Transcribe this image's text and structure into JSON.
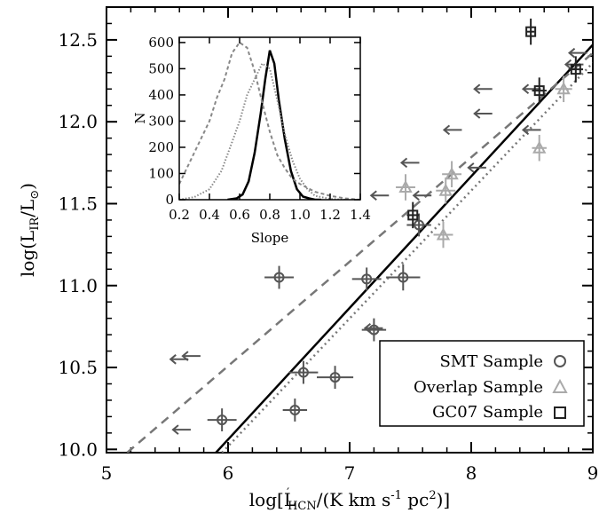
{
  "chart_data": [
    {
      "type": "scatter",
      "xlabel_parts": {
        "pre": "log[L",
        "sub": "HCN",
        "prime": "′",
        "post": "/(K km s",
        "sup1": "-1",
        "mid": " pc",
        "sup2": "2",
        "end": ")]"
      },
      "ylabel_parts": {
        "pre": "log(L",
        "sub1": "IR",
        "mid": "/L",
        "sub2": "⊙",
        "end": ")"
      },
      "xlim": [
        5,
        9
      ],
      "ylim": [
        9.98,
        12.7
      ],
      "xticks": [
        5,
        6,
        7,
        8,
        9
      ],
      "yticks": [
        10.0,
        10.5,
        11.0,
        11.5,
        12.0,
        12.5
      ],
      "xtick_labels": [
        "5",
        "6",
        "7",
        "8",
        "9"
      ],
      "ytick_labels": [
        "10.0",
        "10.5",
        "11.0",
        "11.5",
        "12.0",
        "12.5"
      ],
      "legend": {
        "position": "bottom-right",
        "entries": [
          {
            "label": "SMT Sample",
            "marker": "circle",
            "color": "#555555"
          },
          {
            "label": "Overlap Sample",
            "marker": "triangle",
            "color": "#aaaaaa"
          },
          {
            "label": "GC07 Sample",
            "marker": "square",
            "color": "#222222"
          }
        ]
      },
      "smt_points": [
        {
          "x": 5.95,
          "y": 10.18,
          "xerr": 0.12,
          "yerr": 0.07
        },
        {
          "x": 6.42,
          "y": 11.05,
          "xerr": 0.12,
          "yerr": 0.07
        },
        {
          "x": 6.55,
          "y": 10.24,
          "xerr": 0.1,
          "yerr": 0.07
        },
        {
          "x": 6.62,
          "y": 10.47,
          "xerr": 0.12,
          "yerr": 0.07
        },
        {
          "x": 6.88,
          "y": 10.44,
          "xerr": 0.15,
          "yerr": 0.07
        },
        {
          "x": 7.14,
          "y": 11.04,
          "xerr": 0.12,
          "yerr": 0.07
        },
        {
          "x": 7.2,
          "y": 10.73,
          "xerr": 0.1,
          "yerr": 0.07
        },
        {
          "x": 7.44,
          "y": 11.05,
          "xerr": 0.14,
          "yerr": 0.08
        },
        {
          "x": 7.57,
          "y": 11.37,
          "xerr": 0.1,
          "yerr": 0.07
        }
      ],
      "overlap_points": [
        {
          "x": 7.46,
          "y": 11.6,
          "xerr": 0.08,
          "yerr": 0.08
        },
        {
          "x": 7.77,
          "y": 11.31,
          "xerr": 0.08,
          "yerr": 0.08
        },
        {
          "x": 7.79,
          "y": 11.58,
          "xerr": 0.08,
          "yerr": 0.08
        },
        {
          "x": 7.84,
          "y": 11.68,
          "xerr": 0.08,
          "yerr": 0.08
        },
        {
          "x": 8.56,
          "y": 11.84,
          "xerr": 0.06,
          "yerr": 0.08
        },
        {
          "x": 8.76,
          "y": 12.2,
          "xerr": 0.07,
          "yerr": 0.08
        }
      ],
      "gc07_points": [
        {
          "x": 7.52,
          "y": 11.43,
          "xerr": 0.05,
          "yerr": 0.08
        },
        {
          "x": 8.49,
          "y": 12.55,
          "xerr": 0.03,
          "yerr": 0.08
        },
        {
          "x": 8.56,
          "y": 12.19,
          "xerr": 0.06,
          "yerr": 0.08
        },
        {
          "x": 8.86,
          "y": 12.32,
          "xerr": 0.06,
          "yerr": 0.08
        }
      ],
      "upper_limits": [
        {
          "x": 5.6,
          "y": 10.55
        },
        {
          "x": 5.7,
          "y": 10.57
        },
        {
          "x": 5.62,
          "y": 10.12
        },
        {
          "x": 7.2,
          "y": 10.74
        },
        {
          "x": 7.25,
          "y": 11.55
        },
        {
          "x": 7.5,
          "y": 11.75
        },
        {
          "x": 7.6,
          "y": 11.55
        },
        {
          "x": 7.85,
          "y": 11.95
        },
        {
          "x": 8.05,
          "y": 11.72
        },
        {
          "x": 8.1,
          "y": 12.05
        },
        {
          "x": 8.1,
          "y": 12.2
        },
        {
          "x": 8.5,
          "y": 12.2
        },
        {
          "x": 8.5,
          "y": 11.95
        },
        {
          "x": 8.85,
          "y": 12.35
        },
        {
          "x": 8.88,
          "y": 12.42
        }
      ],
      "fit_lines": [
        {
          "style": "solid",
          "color": "#000000",
          "x": [
            5.9,
            9.0
          ],
          "y": [
            9.98,
            12.47
          ]
        },
        {
          "style": "dashed",
          "color": "#777777",
          "x": [
            5.17,
            9.0
          ],
          "y": [
            9.98,
            12.42
          ]
        },
        {
          "style": "dotted",
          "color": "#777777",
          "x": [
            5.95,
            9.0
          ],
          "y": [
            9.98,
            12.36
          ]
        }
      ]
    },
    {
      "type": "line",
      "xlabel": "Slope",
      "ylabel": "N",
      "xlim": [
        0.2,
        1.4
      ],
      "ylim": [
        0,
        620
      ],
      "xticks": [
        0.2,
        0.4,
        0.6,
        0.8,
        1.0,
        1.2,
        1.4
      ],
      "yticks": [
        0,
        100,
        200,
        300,
        400,
        500,
        600
      ],
      "xtick_labels": [
        "0.2",
        "0.4",
        "0.6",
        "0.8",
        "1.0",
        "1.2",
        "1.4"
      ],
      "ytick_labels": [
        "0",
        "100",
        "200",
        "300",
        "400",
        "500",
        "600"
      ],
      "series": [
        {
          "style": "solid",
          "color": "#000000",
          "x": [
            0.52,
            0.58,
            0.62,
            0.66,
            0.7,
            0.74,
            0.77,
            0.8,
            0.83,
            0.86,
            0.9,
            0.94,
            0.98,
            1.02,
            1.06,
            1.1,
            1.14
          ],
          "y": [
            0,
            5,
            20,
            70,
            180,
            330,
            460,
            570,
            520,
            380,
            230,
            110,
            40,
            12,
            5,
            0,
            0
          ]
        },
        {
          "style": "dotted",
          "color": "#888888",
          "x": [
            0.2,
            0.3,
            0.4,
            0.48,
            0.55,
            0.6,
            0.65,
            0.7,
            0.75,
            0.8,
            0.85,
            0.9,
            0.95,
            1.0,
            1.05,
            1.1,
            1.2,
            1.3
          ],
          "y": [
            0,
            10,
            40,
            110,
            220,
            300,
            400,
            460,
            520,
            500,
            380,
            250,
            150,
            80,
            40,
            15,
            3,
            0
          ]
        },
        {
          "style": "dashed",
          "color": "#888888",
          "x": [
            0.2,
            0.25,
            0.3,
            0.35,
            0.4,
            0.45,
            0.5,
            0.55,
            0.6,
            0.65,
            0.7,
            0.75,
            0.8,
            0.85,
            0.9,
            0.95,
            1.0,
            1.1,
            1.2,
            1.3,
            1.4
          ],
          "y": [
            60,
            120,
            180,
            240,
            300,
            390,
            460,
            560,
            600,
            580,
            490,
            370,
            260,
            170,
            120,
            80,
            60,
            30,
            15,
            5,
            0
          ]
        }
      ]
    }
  ]
}
